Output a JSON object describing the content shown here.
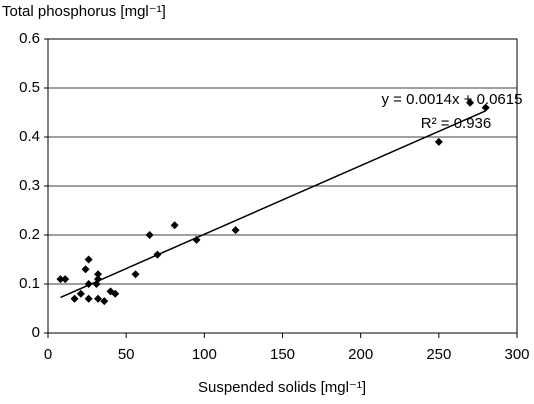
{
  "chart_data": {
    "type": "scatter",
    "y_axis_label": "Total phosphorus [mgl⁻¹]",
    "x_axis_label": "Suspended solids [mgl⁻¹]",
    "x": [
      8,
      11,
      17,
      21,
      24,
      26,
      26,
      26,
      31,
      32,
      32,
      32,
      36,
      40,
      43,
      56,
      65,
      70,
      81,
      95,
      120,
      250,
      270,
      280
    ],
    "values": [
      0.11,
      0.11,
      0.07,
      0.08,
      0.13,
      0.15,
      0.1,
      0.07,
      0.1,
      0.12,
      0.11,
      0.07,
      0.065,
      0.085,
      0.08,
      0.12,
      0.2,
      0.16,
      0.22,
      0.19,
      0.21,
      0.39,
      0.47,
      0.46
    ],
    "color": "#000000",
    "trendline": {
      "slope": 0.0014,
      "intercept": 0.0615,
      "equation": "y = 0.0014x + 0.0615",
      "r_squared": "R² = 0.936"
    },
    "xlim": [
      0,
      300
    ],
    "xticks": [
      0,
      50,
      100,
      150,
      200,
      250,
      300
    ],
    "ylim": [
      0,
      0.6
    ],
    "yticks": [
      0,
      0.1,
      0.2,
      0.3,
      0.4,
      0.5,
      0.6
    ],
    "grid": true
  }
}
